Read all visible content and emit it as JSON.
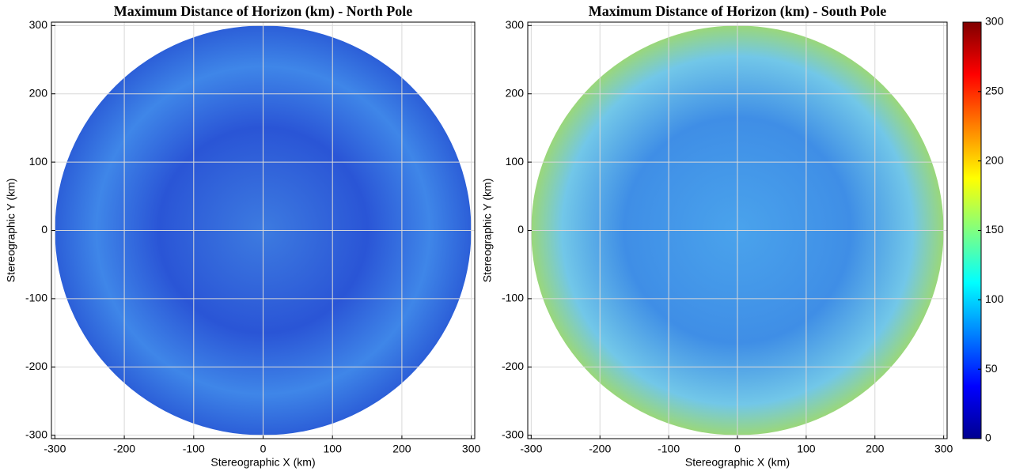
{
  "chart_data": [
    {
      "type": "heatmap",
      "title": "Maximum Distance of Horizon (km) - North Pole",
      "xlabel": "Stereographic X (km)",
      "ylabel": "Stereographic Y (km)",
      "xlim": [
        -305,
        305
      ],
      "ylim": [
        -305,
        305
      ],
      "xticks": [
        -300,
        -200,
        -100,
        0,
        100,
        200,
        300
      ],
      "yticks": [
        -300,
        -200,
        -100,
        0,
        100,
        200,
        300
      ],
      "grid": true
    },
    {
      "type": "heatmap",
      "title": "Maximum Distance of Horizon (km) - South Pole",
      "xlabel": "Stereographic X (km)",
      "ylabel": "Stereographic Y (km)",
      "xlim": [
        -305,
        305
      ],
      "ylim": [
        -305,
        305
      ],
      "xticks": [
        -300,
        -200,
        -100,
        0,
        100,
        200,
        300
      ],
      "yticks": [
        -300,
        -200,
        -100,
        0,
        100,
        200,
        300
      ],
      "grid": true,
      "colorbar": {
        "lim": [
          0,
          300
        ],
        "ticks": [
          0,
          50,
          100,
          150,
          200,
          250,
          300
        ],
        "colormap": "jet"
      }
    }
  ]
}
